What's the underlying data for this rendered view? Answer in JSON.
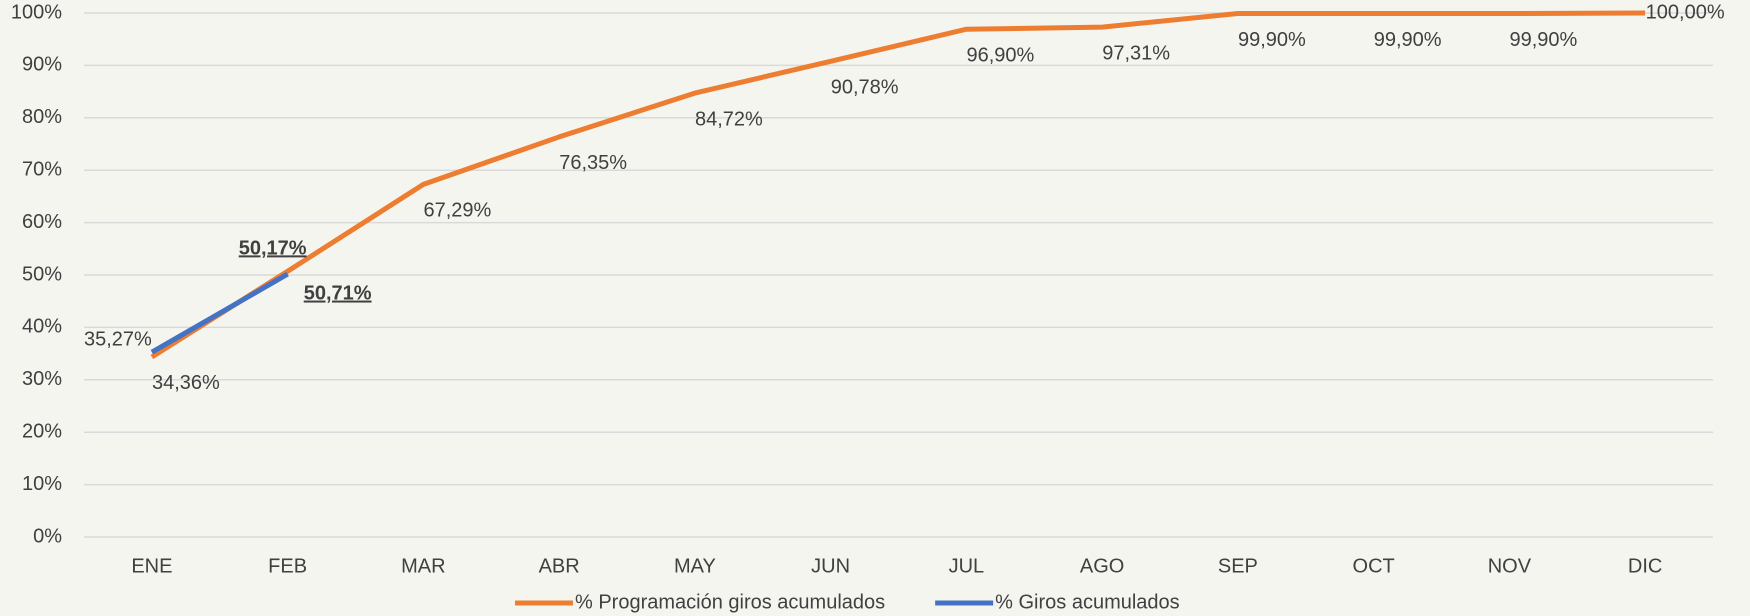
{
  "chart_data": {
    "type": "line",
    "categories": [
      "ENE",
      "FEB",
      "MAR",
      "ABR",
      "MAY",
      "JUN",
      "JUL",
      "AGO",
      "SEP",
      "OCT",
      "NOV",
      "DIC"
    ],
    "series": [
      {
        "name": "% Programación giros acumulados",
        "color": "#ed7d31",
        "values": [
          34.36,
          50.71,
          67.29,
          76.35,
          84.72,
          90.78,
          96.9,
          97.31,
          99.9,
          99.9,
          99.9,
          100.0
        ],
        "value_labels": [
          "34,36%",
          "50,71%",
          "67,29%",
          "76,35%",
          "84,72%",
          "90,78%",
          "96,90%",
          "97,31%",
          "99,90%",
          "99,90%",
          "99,90%",
          "100,00%"
        ]
      },
      {
        "name": "% Giros acumulados",
        "color": "#4472c4",
        "values": [
          35.27,
          50.17,
          null,
          null,
          null,
          null,
          null,
          null,
          null,
          null,
          null,
          null
        ],
        "value_labels": [
          "35,27%",
          "50,17%",
          null,
          null,
          null,
          null,
          null,
          null,
          null,
          null,
          null,
          null
        ]
      }
    ],
    "ylim": [
      0,
      100
    ],
    "yticks": [
      {
        "value": 0,
        "label": "0%"
      },
      {
        "value": 10,
        "label": "10%"
      },
      {
        "value": 20,
        "label": "20%"
      },
      {
        "value": 30,
        "label": "30%"
      },
      {
        "value": 40,
        "label": "40%"
      },
      {
        "value": 50,
        "label": "50%"
      },
      {
        "value": 60,
        "label": "60%"
      },
      {
        "value": 70,
        "label": "70%"
      },
      {
        "value": 80,
        "label": "80%"
      },
      {
        "value": 90,
        "label": "90%"
      },
      {
        "value": 100,
        "label": "100%"
      }
    ],
    "grid": true,
    "legend": "bottom"
  }
}
